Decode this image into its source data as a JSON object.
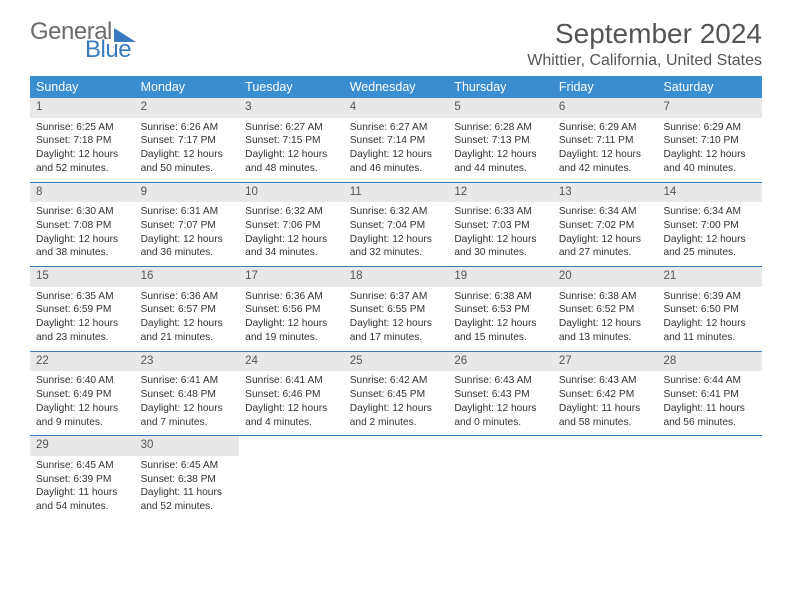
{
  "logo": {
    "text1": "General",
    "text2": "Blue"
  },
  "title": "September 2024",
  "location": "Whittier, California, United States",
  "weekdays": [
    "Sunday",
    "Monday",
    "Tuesday",
    "Wednesday",
    "Thursday",
    "Friday",
    "Saturday"
  ],
  "colors": {
    "headerBg": "#3a8dd0",
    "rowBorder": "#3a7bbf",
    "dayBar": "#e8e8e8"
  },
  "days": [
    {
      "n": "1",
      "sr": "6:25 AM",
      "ss": "7:18 PM",
      "dl": "12 hours and 52 minutes."
    },
    {
      "n": "2",
      "sr": "6:26 AM",
      "ss": "7:17 PM",
      "dl": "12 hours and 50 minutes."
    },
    {
      "n": "3",
      "sr": "6:27 AM",
      "ss": "7:15 PM",
      "dl": "12 hours and 48 minutes."
    },
    {
      "n": "4",
      "sr": "6:27 AM",
      "ss": "7:14 PM",
      "dl": "12 hours and 46 minutes."
    },
    {
      "n": "5",
      "sr": "6:28 AM",
      "ss": "7:13 PM",
      "dl": "12 hours and 44 minutes."
    },
    {
      "n": "6",
      "sr": "6:29 AM",
      "ss": "7:11 PM",
      "dl": "12 hours and 42 minutes."
    },
    {
      "n": "7",
      "sr": "6:29 AM",
      "ss": "7:10 PM",
      "dl": "12 hours and 40 minutes."
    },
    {
      "n": "8",
      "sr": "6:30 AM",
      "ss": "7:08 PM",
      "dl": "12 hours and 38 minutes."
    },
    {
      "n": "9",
      "sr": "6:31 AM",
      "ss": "7:07 PM",
      "dl": "12 hours and 36 minutes."
    },
    {
      "n": "10",
      "sr": "6:32 AM",
      "ss": "7:06 PM",
      "dl": "12 hours and 34 minutes."
    },
    {
      "n": "11",
      "sr": "6:32 AM",
      "ss": "7:04 PM",
      "dl": "12 hours and 32 minutes."
    },
    {
      "n": "12",
      "sr": "6:33 AM",
      "ss": "7:03 PM",
      "dl": "12 hours and 30 minutes."
    },
    {
      "n": "13",
      "sr": "6:34 AM",
      "ss": "7:02 PM",
      "dl": "12 hours and 27 minutes."
    },
    {
      "n": "14",
      "sr": "6:34 AM",
      "ss": "7:00 PM",
      "dl": "12 hours and 25 minutes."
    },
    {
      "n": "15",
      "sr": "6:35 AM",
      "ss": "6:59 PM",
      "dl": "12 hours and 23 minutes."
    },
    {
      "n": "16",
      "sr": "6:36 AM",
      "ss": "6:57 PM",
      "dl": "12 hours and 21 minutes."
    },
    {
      "n": "17",
      "sr": "6:36 AM",
      "ss": "6:56 PM",
      "dl": "12 hours and 19 minutes."
    },
    {
      "n": "18",
      "sr": "6:37 AM",
      "ss": "6:55 PM",
      "dl": "12 hours and 17 minutes."
    },
    {
      "n": "19",
      "sr": "6:38 AM",
      "ss": "6:53 PM",
      "dl": "12 hours and 15 minutes."
    },
    {
      "n": "20",
      "sr": "6:38 AM",
      "ss": "6:52 PM",
      "dl": "12 hours and 13 minutes."
    },
    {
      "n": "21",
      "sr": "6:39 AM",
      "ss": "6:50 PM",
      "dl": "12 hours and 11 minutes."
    },
    {
      "n": "22",
      "sr": "6:40 AM",
      "ss": "6:49 PM",
      "dl": "12 hours and 9 minutes."
    },
    {
      "n": "23",
      "sr": "6:41 AM",
      "ss": "6:48 PM",
      "dl": "12 hours and 7 minutes."
    },
    {
      "n": "24",
      "sr": "6:41 AM",
      "ss": "6:46 PM",
      "dl": "12 hours and 4 minutes."
    },
    {
      "n": "25",
      "sr": "6:42 AM",
      "ss": "6:45 PM",
      "dl": "12 hours and 2 minutes."
    },
    {
      "n": "26",
      "sr": "6:43 AM",
      "ss": "6:43 PM",
      "dl": "12 hours and 0 minutes."
    },
    {
      "n": "27",
      "sr": "6:43 AM",
      "ss": "6:42 PM",
      "dl": "11 hours and 58 minutes."
    },
    {
      "n": "28",
      "sr": "6:44 AM",
      "ss": "6:41 PM",
      "dl": "11 hours and 56 minutes."
    },
    {
      "n": "29",
      "sr": "6:45 AM",
      "ss": "6:39 PM",
      "dl": "11 hours and 54 minutes."
    },
    {
      "n": "30",
      "sr": "6:45 AM",
      "ss": "6:38 PM",
      "dl": "11 hours and 52 minutes."
    }
  ],
  "labels": {
    "sunrise": "Sunrise:",
    "sunset": "Sunset:",
    "daylight": "Daylight:"
  },
  "structure": {
    "type": "calendar-table",
    "startWeekday": 0,
    "totalDays": 30,
    "cols": 7
  }
}
